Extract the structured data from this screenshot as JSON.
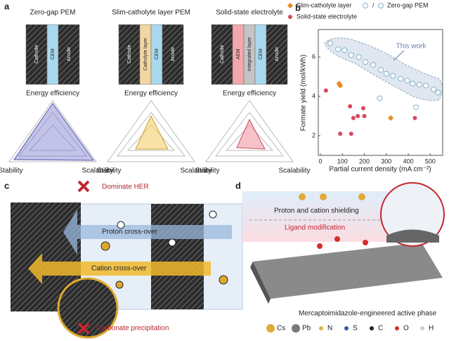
{
  "panels": {
    "a": {
      "label": "a",
      "designs": [
        {
          "title": "Zero-gap PEM",
          "layers": [
            "Cathode",
            "CEM",
            "Anode"
          ]
        },
        {
          "title": "Slim-catholyte layer PEM",
          "layers": [
            "Cathode",
            "Catholyte layer",
            "CEM",
            "Anode"
          ]
        },
        {
          "title": "Solid-state electrolyte",
          "layers": [
            "Cathode",
            "AEM",
            "Integrated layer",
            "CEM",
            "Anode"
          ]
        }
      ],
      "radar_axes": [
        "Energy efficiency",
        "Stability",
        "Scalability"
      ]
    },
    "b": {
      "label": "b"
    },
    "c": {
      "label": "c",
      "texts": [
        "Dominate HER",
        "Proton cross-over",
        "Cation cross-over",
        "Carbonate precipitation"
      ]
    },
    "d": {
      "label": "d",
      "texts": [
        "Proton and cation shielding",
        "Ligand modification",
        "Mercaptoimidazole-engineered active phase"
      ],
      "atoms": [
        {
          "symbol": "Cs",
          "color": "#e2a93a"
        },
        {
          "symbol": "Pb",
          "color": "#7a7a7a"
        },
        {
          "symbol": "N",
          "color": "#d4b84a"
        },
        {
          "symbol": "S",
          "color": "#2f5fa8"
        },
        {
          "symbol": "C",
          "color": "#222222"
        },
        {
          "symbol": "O",
          "color": "#d62d2d"
        },
        {
          "symbol": "H",
          "color": "#cfcfcf"
        }
      ]
    }
  },
  "chart_data": {
    "type": "scatter",
    "xlabel": "Partial current density (mA cm⁻²)",
    "ylabel": "Formate yield (mol/kWh)",
    "annotation": "This work",
    "legend_separator": "/",
    "xlim": [
      0,
      550
    ],
    "xticks": [
      0,
      100,
      200,
      300,
      400,
      500
    ],
    "ylim": [
      1,
      7.4
    ],
    "yticks": [
      2,
      4,
      6
    ],
    "series": [
      {
        "name": "Zero-gap PEM",
        "color": "#7fb0c8",
        "marker": "open-circle",
        "x": [
          45,
          80,
          110,
          140,
          175,
          205,
          240,
          275,
          300,
          330,
          365,
          395,
          420,
          450,
          480,
          515,
          535,
          270,
          435
        ],
        "values": [
          6.7,
          6.4,
          6.35,
          6.1,
          6.0,
          5.75,
          5.6,
          5.35,
          5.15,
          5.05,
          4.9,
          4.8,
          4.65,
          4.6,
          4.55,
          4.35,
          4.2,
          3.9,
          3.45
        ]
      },
      {
        "name": "Slim-catholyte layer",
        "color": "#e8891e",
        "marker": "diamond",
        "x": [
          85,
          90,
          320
        ],
        "values": [
          4.65,
          4.55,
          2.9
        ]
      },
      {
        "name": "Solid-state electrolyte",
        "color": "#d9475e",
        "marker": "dot",
        "x": [
          25,
          135,
          150,
          170,
          200,
          195,
          90,
          140,
          430
        ],
        "values": [
          4.3,
          3.5,
          2.9,
          3.0,
          3.0,
          3.4,
          2.1,
          2.1,
          2.9
        ]
      }
    ]
  }
}
